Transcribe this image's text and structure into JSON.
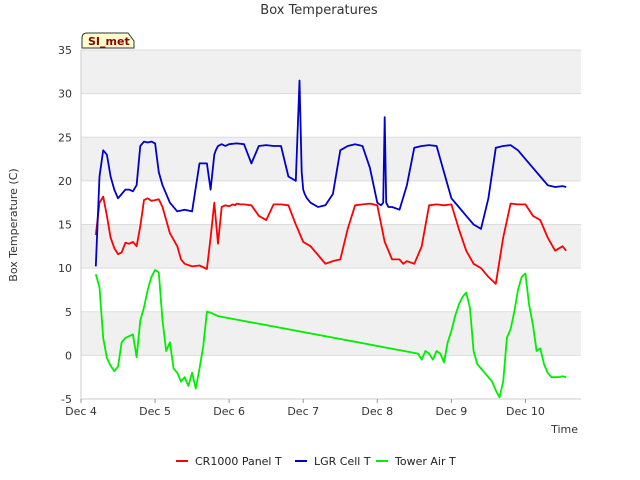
{
  "chart_data": {
    "type": "line",
    "title": "Box Temperatures",
    "xlabel": "Time",
    "ylabel": "Box Temperature (C)",
    "badge": "SI_met",
    "ylim": [
      -5,
      35
    ],
    "yticks": [
      -5,
      0,
      5,
      10,
      15,
      20,
      25,
      30,
      35
    ],
    "xlim": [
      0,
      6.75
    ],
    "xticks": [
      {
        "value": 0,
        "label": "Dec 4"
      },
      {
        "value": 1,
        "label": "Dec 5"
      },
      {
        "value": 2,
        "label": "Dec 6"
      },
      {
        "value": 3,
        "label": "Dec 7"
      },
      {
        "value": 4,
        "label": "Dec 8"
      },
      {
        "value": 5,
        "label": "Dec 9"
      },
      {
        "value": 6,
        "label": "Dec 10"
      }
    ],
    "grid": "horizontal bands",
    "legend_position": "bottom",
    "series": [
      {
        "name": "CR1000 Panel T",
        "color": "#ff0000",
        "x": [
          0.2,
          0.25,
          0.3,
          0.35,
          0.4,
          0.45,
          0.5,
          0.55,
          0.6,
          0.65,
          0.7,
          0.75,
          0.8,
          0.85,
          0.9,
          0.95,
          1.0,
          1.05,
          1.1,
          1.2,
          1.3,
          1.35,
          1.4,
          1.5,
          1.6,
          1.7,
          1.75,
          1.8,
          1.85,
          1.9,
          1.95,
          2.0,
          2.05,
          2.08,
          2.1,
          2.15,
          2.2,
          2.3,
          2.4,
          2.5,
          2.6,
          2.7,
          2.8,
          2.9,
          3.0,
          3.1,
          3.2,
          3.3,
          3.4,
          3.5,
          3.6,
          3.7,
          3.8,
          3.9,
          4.0,
          4.1,
          4.2,
          4.3,
          4.35,
          4.4,
          4.5,
          4.6,
          4.7,
          4.8,
          4.9,
          5.0,
          5.1,
          5.2,
          5.3,
          5.4,
          5.5,
          5.6,
          5.7,
          5.8,
          5.9,
          6.0,
          6.1,
          6.2,
          6.3,
          6.4,
          6.5,
          6.55
        ],
        "y": [
          13.8,
          17.5,
          18.2,
          16.0,
          13.5,
          12.3,
          11.6,
          11.8,
          12.9,
          12.8,
          13.0,
          12.5,
          14.8,
          17.8,
          18.0,
          17.7,
          17.8,
          17.9,
          17.0,
          14.0,
          12.5,
          11.0,
          10.5,
          10.2,
          10.3,
          9.9,
          13.5,
          17.5,
          12.8,
          17.0,
          17.2,
          17.1,
          17.3,
          17.2,
          17.4,
          17.3,
          17.3,
          17.2,
          16.0,
          15.5,
          17.3,
          17.3,
          17.2,
          15.0,
          13.0,
          12.5,
          11.5,
          10.5,
          10.8,
          11.0,
          14.5,
          17.2,
          17.3,
          17.4,
          17.2,
          13.0,
          11.0,
          11.0,
          10.5,
          10.8,
          10.5,
          12.5,
          17.2,
          17.3,
          17.2,
          17.3,
          14.5,
          12.0,
          10.5,
          10.0,
          9.0,
          8.2,
          13.5,
          17.4,
          17.3,
          17.3,
          16.0,
          15.5,
          13.5,
          12.0,
          12.5,
          12.0
        ]
      },
      {
        "name": "LGR Cell T",
        "color": "#0000cc",
        "x": [
          0.2,
          0.25,
          0.3,
          0.35,
          0.4,
          0.45,
          0.5,
          0.55,
          0.6,
          0.65,
          0.7,
          0.75,
          0.8,
          0.85,
          0.9,
          0.95,
          1.0,
          1.05,
          1.1,
          1.2,
          1.3,
          1.4,
          1.5,
          1.6,
          1.7,
          1.75,
          1.8,
          1.82,
          1.85,
          1.9,
          1.95,
          2.0,
          2.1,
          2.2,
          2.3,
          2.4,
          2.5,
          2.6,
          2.7,
          2.8,
          2.9,
          2.95,
          2.98,
          3.0,
          3.02,
          3.05,
          3.1,
          3.2,
          3.3,
          3.4,
          3.5,
          3.6,
          3.7,
          3.8,
          3.9,
          4.0,
          4.05,
          4.08,
          4.1,
          4.12,
          4.15,
          4.2,
          4.3,
          4.4,
          4.5,
          4.6,
          4.7,
          4.8,
          4.9,
          5.0,
          5.1,
          5.2,
          5.3,
          5.4,
          5.5,
          5.6,
          5.7,
          5.8,
          5.9,
          6.0,
          6.1,
          6.2,
          6.3,
          6.4,
          6.5,
          6.55
        ],
        "y": [
          10.2,
          20.5,
          23.5,
          23.0,
          20.5,
          19.0,
          18.0,
          18.5,
          19.0,
          19.0,
          18.8,
          19.5,
          24.0,
          24.5,
          24.4,
          24.5,
          24.3,
          21.0,
          19.5,
          17.5,
          16.5,
          16.7,
          16.5,
          22.0,
          22.0,
          19.0,
          23.0,
          23.5,
          24.0,
          24.2,
          24.0,
          24.2,
          24.3,
          24.2,
          22.0,
          24.0,
          24.1,
          24.0,
          24.0,
          20.5,
          20.0,
          31.5,
          21.0,
          19.0,
          18.5,
          18.0,
          17.5,
          17.0,
          17.2,
          18.5,
          23.5,
          24.0,
          24.2,
          24.0,
          21.5,
          17.5,
          17.2,
          17.5,
          27.3,
          17.5,
          17.0,
          17.0,
          16.7,
          19.5,
          23.8,
          24.0,
          24.1,
          24.0,
          21.0,
          18.0,
          17.0,
          16.0,
          15.0,
          14.5,
          18.0,
          23.8,
          24.0,
          24.1,
          23.5,
          22.5,
          21.5,
          20.5,
          19.5,
          19.3,
          19.4,
          19.3
        ]
      },
      {
        "name": "Tower Air T",
        "color": "#00ee00",
        "x": [
          0.2,
          0.25,
          0.3,
          0.35,
          0.4,
          0.45,
          0.5,
          0.55,
          0.6,
          0.65,
          0.7,
          0.75,
          0.8,
          0.85,
          0.9,
          0.95,
          1.0,
          1.05,
          1.1,
          1.15,
          1.2,
          1.25,
          1.3,
          1.35,
          1.4,
          1.45,
          1.5,
          1.55,
          1.6,
          1.65,
          1.7,
          1.75,
          1.8,
          1.85,
          4.55,
          4.6,
          4.65,
          4.7,
          4.75,
          4.8,
          4.85,
          4.9,
          4.95,
          5.0,
          5.05,
          5.1,
          5.15,
          5.2,
          5.25,
          5.3,
          5.35,
          5.4,
          5.45,
          5.5,
          5.55,
          5.6,
          5.65,
          5.7,
          5.75,
          5.8,
          5.85,
          5.9,
          5.95,
          6.0,
          6.05,
          6.1,
          6.15,
          6.2,
          6.25,
          6.3,
          6.35,
          6.4,
          6.45,
          6.5,
          6.55
        ],
        "y": [
          9.3,
          7.8,
          2.0,
          -0.3,
          -1.2,
          -1.8,
          -1.3,
          1.5,
          2.0,
          2.2,
          2.4,
          -0.2,
          4.0,
          5.5,
          7.5,
          9.0,
          9.8,
          9.5,
          4.0,
          0.5,
          1.5,
          -1.5,
          -2.0,
          -3.0,
          -2.5,
          -3.5,
          -2.0,
          -3.8,
          -1.5,
          1.0,
          5.0,
          4.9,
          4.7,
          4.5,
          0.2,
          -0.5,
          0.5,
          0.2,
          -0.5,
          0.5,
          0.2,
          -0.8,
          1.5,
          2.8,
          4.5,
          5.8,
          6.7,
          7.2,
          5.5,
          0.5,
          -1.0,
          -1.5,
          -2.0,
          -2.5,
          -3.0,
          -4.0,
          -4.8,
          -3.0,
          2.0,
          3.0,
          5.0,
          7.5,
          9.0,
          9.4,
          5.8,
          3.5,
          0.5,
          0.8,
          -1.0,
          -2.0,
          -2.5,
          -2.5,
          -2.5,
          -2.4,
          -2.5
        ]
      }
    ]
  }
}
